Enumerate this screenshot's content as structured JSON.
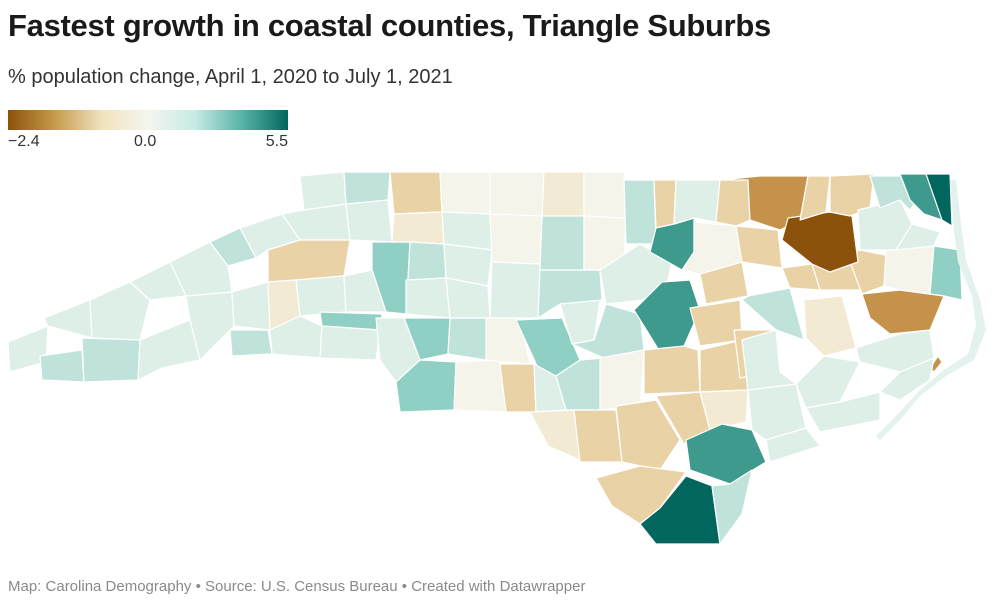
{
  "header": {
    "title": "Fastest growth in coastal counties, Triangle Suburbs",
    "subtitle": "% population change, April 1, 2020 to July 1, 2021"
  },
  "legend": {
    "min_label": "−2.4",
    "mid_label": "0.0",
    "max_label": "5.5",
    "colors": [
      "#8c510a",
      "#c79a4c",
      "#f0e2bd",
      "#f5f5ee",
      "#c7eae5",
      "#5ab4a8",
      "#01665e"
    ]
  },
  "map": {
    "state": "North Carolina",
    "palette": {
      "strong_loss": "#8c510a",
      "loss": "#c4924a",
      "slight_loss": "#e9d3a6",
      "minimal_loss": "#f3ead3",
      "neutral": "#f4f4ea",
      "slight_gain": "#deefe8",
      "gain": "#bfe3db",
      "moderate_gain": "#90cfc3",
      "high_gain": "#3f9a8e",
      "highest_gain": "#01665e",
      "coast_water": "#e3f2ef"
    }
  },
  "footer": {
    "credit": "Map: Carolina Demography • Source: U.S. Census Bureau • Created with Datawrapper"
  }
}
